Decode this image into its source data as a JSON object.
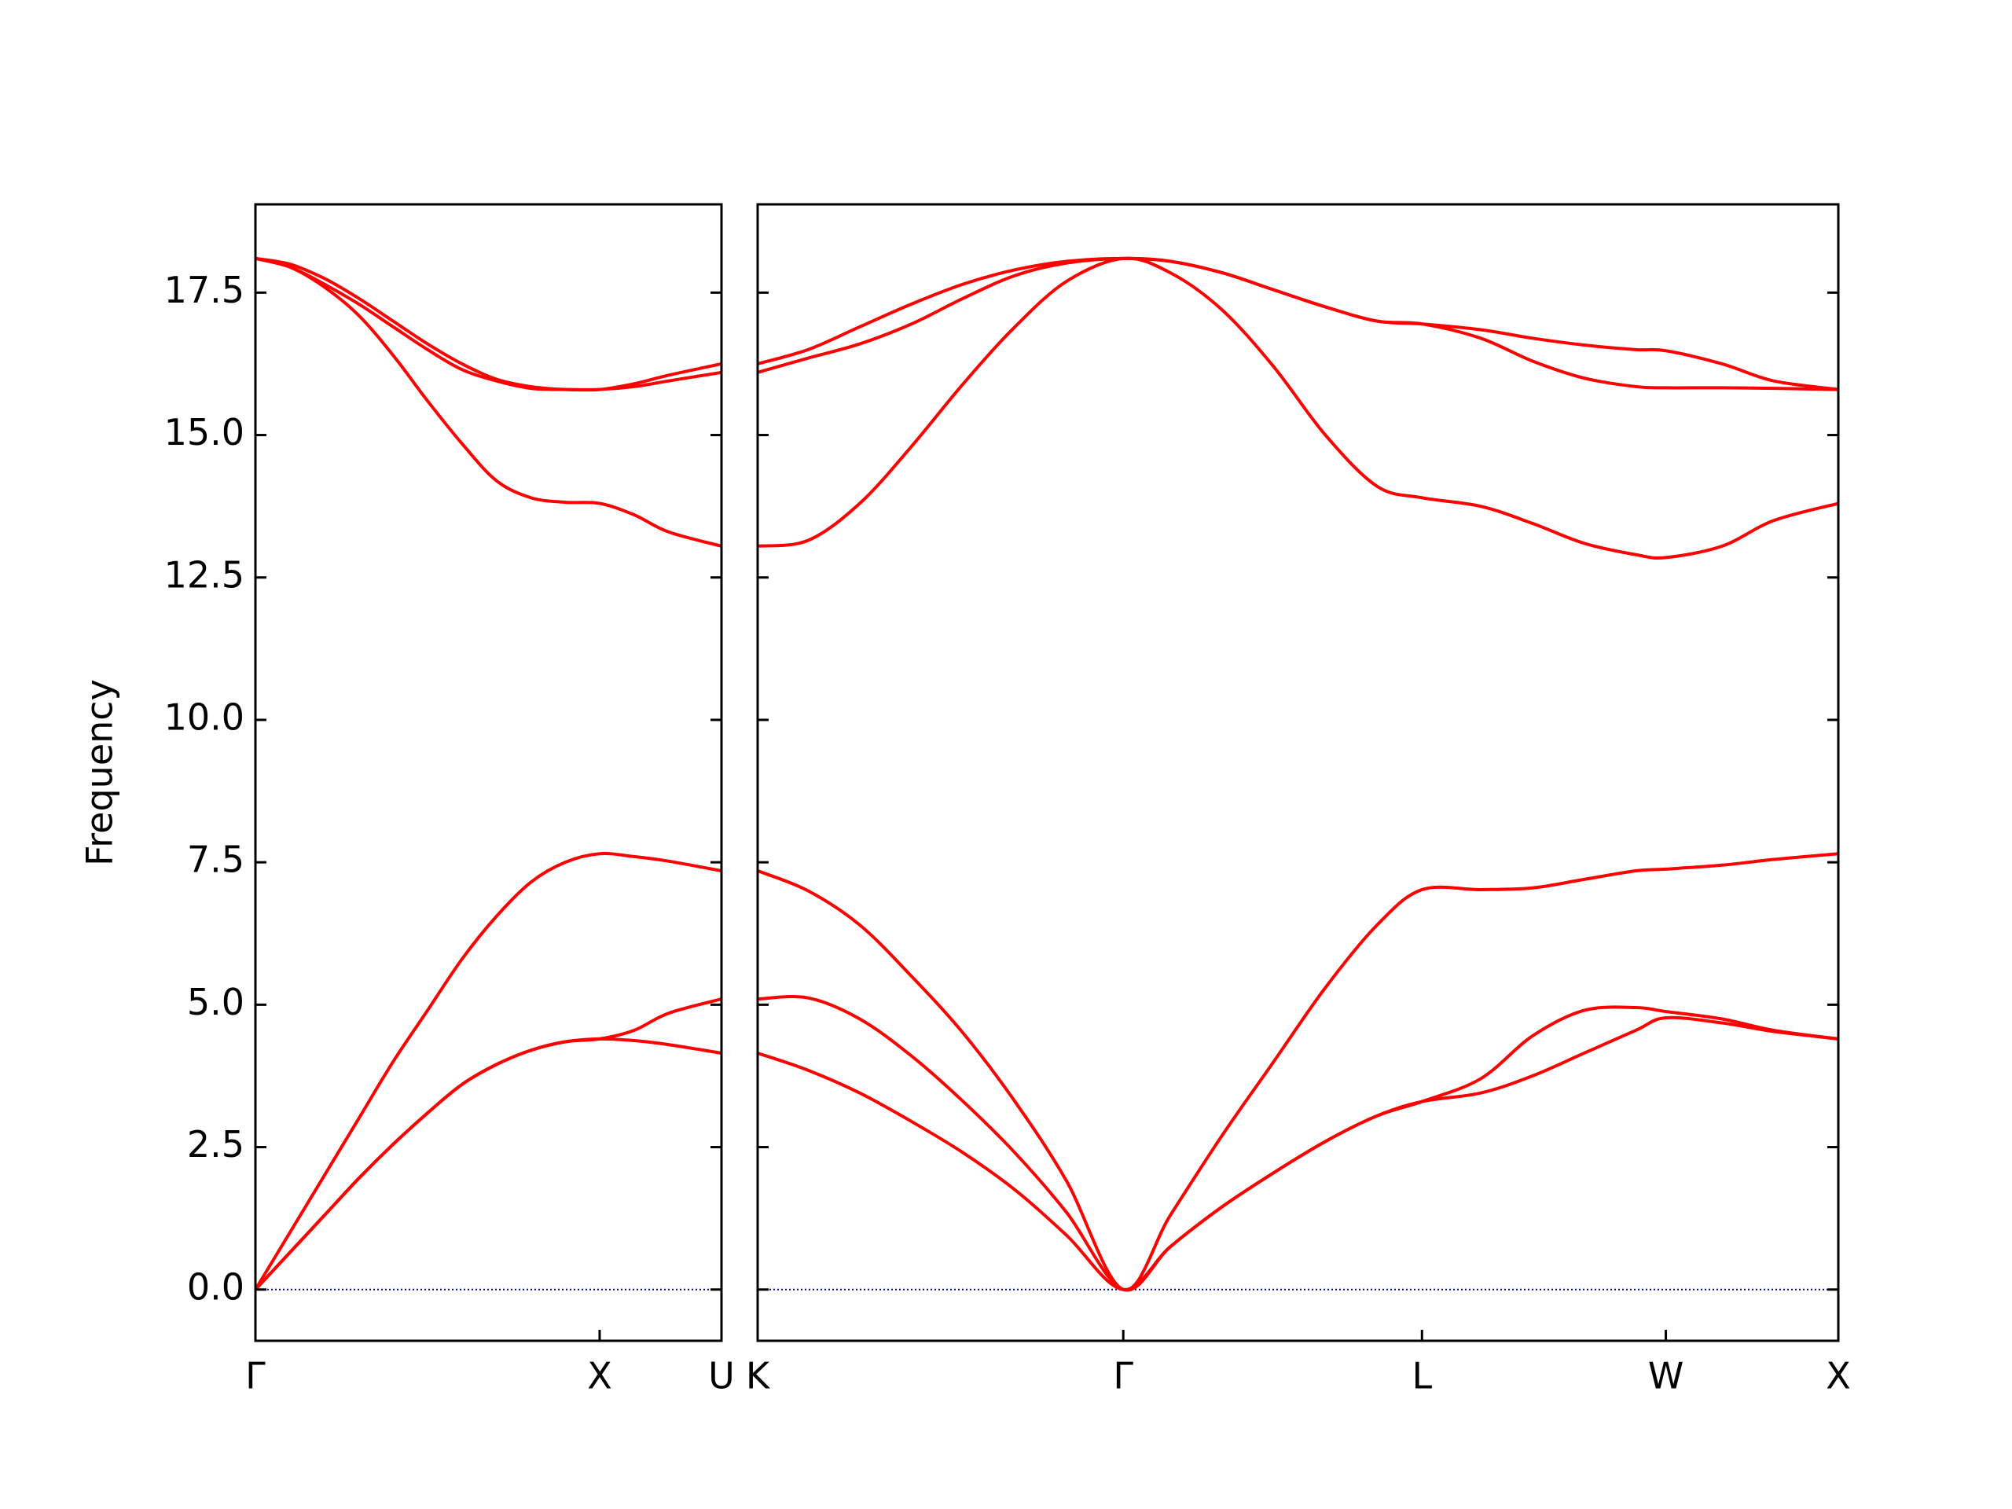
{
  "chart_data": [
    {
      "type": "line",
      "ylabel": "Frequency",
      "xlim": [
        0,
        1.354
      ],
      "ylim": [
        -0.9,
        19.05
      ],
      "xticks": [
        {
          "value": 0,
          "label": "Γ"
        },
        {
          "value": 1,
          "label": "X"
        },
        {
          "value": 1.354,
          "label": "U"
        }
      ],
      "yticks": [
        {
          "value": 0,
          "label": "0.0"
        },
        2.5,
        {
          "value": 5,
          "label": "5.0"
        },
        7.5,
        {
          "value": 10,
          "label": "10.0"
        },
        12.5,
        {
          "value": 15,
          "label": "15.0"
        },
        17.5
      ],
      "hline": 0,
      "hline_color": "#00008b",
      "x": [
        0,
        0.1,
        0.2,
        0.3,
        0.4,
        0.5,
        0.6,
        0.7,
        0.8,
        0.9,
        1.0,
        1.1,
        1.2,
        1.354
      ],
      "series": [
        {
          "color": "#ff0000",
          "values": [
            0,
            0.65,
            1.3,
            1.95,
            2.55,
            3.1,
            3.6,
            3.95,
            4.2,
            4.35,
            4.4,
            4.37,
            4.3,
            4.15
          ]
        },
        {
          "color": "#ff0000",
          "values": [
            0,
            0.65,
            1.3,
            1.95,
            2.55,
            3.1,
            3.6,
            3.95,
            4.2,
            4.35,
            4.4,
            4.55,
            4.85,
            5.1
          ]
        },
        {
          "color": "#ff0000",
          "values": [
            0,
            1.0,
            2.0,
            3.0,
            4.0,
            4.9,
            5.8,
            6.55,
            7.15,
            7.5,
            7.65,
            7.6,
            7.52,
            7.35
          ]
        },
        {
          "color": "#ff0000",
          "values": [
            18.1,
            17.95,
            17.6,
            17.1,
            16.4,
            15.6,
            14.85,
            14.2,
            13.9,
            13.82,
            13.8,
            13.6,
            13.3,
            13.05
          ]
        },
        {
          "color": "#ff0000",
          "values": [
            18.1,
            17.95,
            17.65,
            17.3,
            16.9,
            16.5,
            16.15,
            15.95,
            15.82,
            15.8,
            15.8,
            15.85,
            15.95,
            16.1
          ]
        },
        {
          "color": "#ff0000",
          "values": [
            18.1,
            18.0,
            17.75,
            17.4,
            17.0,
            16.6,
            16.25,
            15.98,
            15.85,
            15.8,
            15.8,
            15.9,
            16.05,
            16.25
          ]
        }
      ]
    },
    {
      "type": "line",
      "xlim": [
        1.354,
        4.487
      ],
      "ylim": [
        -0.9,
        19.05
      ],
      "xticks": [
        {
          "value": 1.354,
          "label": "K"
        },
        {
          "value": 2.414,
          "label": "Γ"
        },
        {
          "value": 3.28,
          "label": "L"
        },
        {
          "value": 3.987,
          "label": "W"
        },
        {
          "value": 4.487,
          "label": "X"
        }
      ],
      "hline": 0,
      "hline_color": "#00008b",
      "x": [
        1.354,
        1.5,
        1.65,
        1.8,
        1.95,
        2.1,
        2.25,
        2.414,
        2.55,
        2.7,
        2.85,
        3.0,
        3.15,
        3.28,
        3.45,
        3.6,
        3.75,
        3.9,
        3.987,
        4.15,
        4.3,
        4.487
      ],
      "series": [
        {
          "color": "#ff0000",
          "values": [
            4.15,
            3.85,
            3.45,
            2.95,
            2.4,
            1.75,
            0.95,
            0,
            0.75,
            1.45,
            2.05,
            2.6,
            3.05,
            3.3,
            3.45,
            3.75,
            4.15,
            4.55,
            4.77,
            4.68,
            4.53,
            4.4
          ]
        },
        {
          "color": "#ff0000",
          "values": [
            5.1,
            5.12,
            4.75,
            4.1,
            3.3,
            2.4,
            1.35,
            0,
            0.75,
            1.45,
            2.05,
            2.6,
            3.05,
            3.3,
            3.7,
            4.45,
            4.9,
            4.95,
            4.88,
            4.75,
            4.55,
            4.4
          ]
        },
        {
          "color": "#ff0000",
          "values": [
            7.35,
            7.0,
            6.4,
            5.5,
            4.5,
            3.3,
            1.9,
            0,
            1.3,
            2.7,
            4.0,
            5.3,
            6.4,
            7.02,
            7.02,
            7.05,
            7.2,
            7.35,
            7.38,
            7.45,
            7.55,
            7.65
          ]
        },
        {
          "color": "#ff0000",
          "values": [
            13.05,
            13.15,
            13.8,
            14.8,
            15.9,
            16.9,
            17.7,
            18.1,
            17.85,
            17.2,
            16.2,
            15.0,
            14.1,
            13.9,
            13.75,
            13.45,
            13.1,
            12.9,
            12.85,
            13.05,
            13.5,
            13.8
          ]
        },
        {
          "color": "#ff0000",
          "values": [
            16.1,
            16.35,
            16.6,
            16.95,
            17.4,
            17.8,
            18.02,
            18.1,
            18.05,
            17.85,
            17.55,
            17.25,
            17.0,
            16.95,
            16.7,
            16.3,
            16.0,
            15.85,
            15.83,
            15.83,
            15.82,
            15.8
          ]
        },
        {
          "color": "#ff0000",
          "values": [
            16.25,
            16.5,
            16.9,
            17.3,
            17.65,
            17.9,
            18.05,
            18.1,
            18.05,
            17.85,
            17.55,
            17.25,
            17.0,
            16.95,
            16.85,
            16.7,
            16.58,
            16.5,
            16.48,
            16.25,
            15.95,
            15.8
          ]
        }
      ]
    }
  ]
}
